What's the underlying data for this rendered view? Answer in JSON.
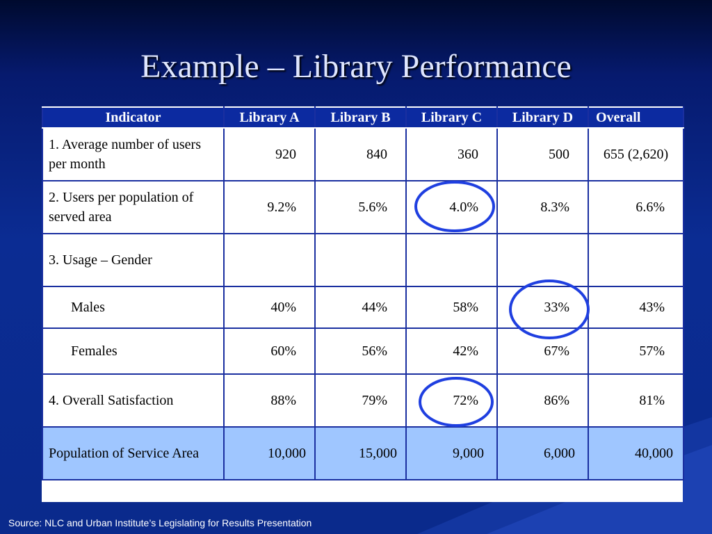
{
  "title": "Example – Library Performance",
  "header": [
    "Indicator",
    "Library A",
    "Library B",
    "Library C",
    "Library D",
    "Overall"
  ],
  "rows": [
    {
      "label": "1. Average number of users per month",
      "a": "920",
      "b": "840",
      "c": "360",
      "d": "500",
      "overall": "655 (2,620)"
    },
    {
      "label": "2. Users per  population of served area",
      "a": "9.2%",
      "b": "5.6%",
      "c": "4.0%",
      "d": "8.3%",
      "overall": "6.6%"
    },
    {
      "label": "3. Usage – Gender",
      "a": "",
      "b": "",
      "c": "",
      "d": "",
      "overall": ""
    },
    {
      "label": "Males",
      "a": "40%",
      "b": "44%",
      "c": "58%",
      "d": "33%",
      "overall": "43%"
    },
    {
      "label": "Females",
      "a": "60%",
      "b": "56%",
      "c": "42%",
      "d": "67%",
      "overall": "57%"
    },
    {
      "label": "4. Overall Satisfaction",
      "a": "88%",
      "b": "79%",
      "c": "72%",
      "d": "86%",
      "overall": "81%"
    },
    {
      "label": "Population of Service Area",
      "a": "10,000",
      "b": "15,000",
      "c": "9,000",
      "d": "6,000",
      "overall": "40,000"
    }
  ],
  "source": "Source:  NLC and Urban Institute’s Legislating for Results Presentation",
  "colors": {
    "highlight_circle": "#1f3fe0",
    "population_row": "#9fc6ff",
    "header": "#0c2aa0"
  }
}
